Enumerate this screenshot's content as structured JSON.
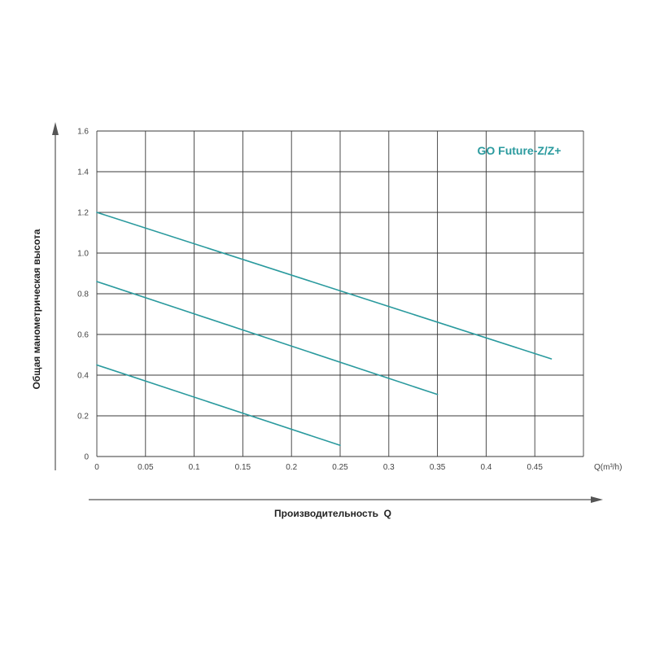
{
  "chart_data": {
    "type": "line",
    "title": "GO Future-Z/Z+",
    "xlabel": "Производительность  Q",
    "ylabel": "Общая манометрическая высота",
    "x_unit": "Q(m³/h)",
    "xlim": [
      0,
      0.5
    ],
    "ylim": [
      0,
      1.6
    ],
    "x_ticks": [
      "0",
      "0.05",
      "0.1",
      "0.15",
      "0.2",
      "0.25",
      "0.3",
      "0.35",
      "0.4",
      "0.45"
    ],
    "y_ticks": [
      "0",
      "0.2",
      "0.4",
      "0.6",
      "0.8",
      "1.0",
      "1.2",
      "1.4",
      "1.6"
    ],
    "grid": true,
    "line_color": "#2a9a9e",
    "series": [
      {
        "x": [
          0,
          0.467
        ],
        "y": [
          1.2,
          0.48
        ]
      },
      {
        "x": [
          0,
          0.35
        ],
        "y": [
          0.86,
          0.305
        ]
      },
      {
        "x": [
          0,
          0.25
        ],
        "y": [
          0.45,
          0.055
        ]
      }
    ]
  }
}
